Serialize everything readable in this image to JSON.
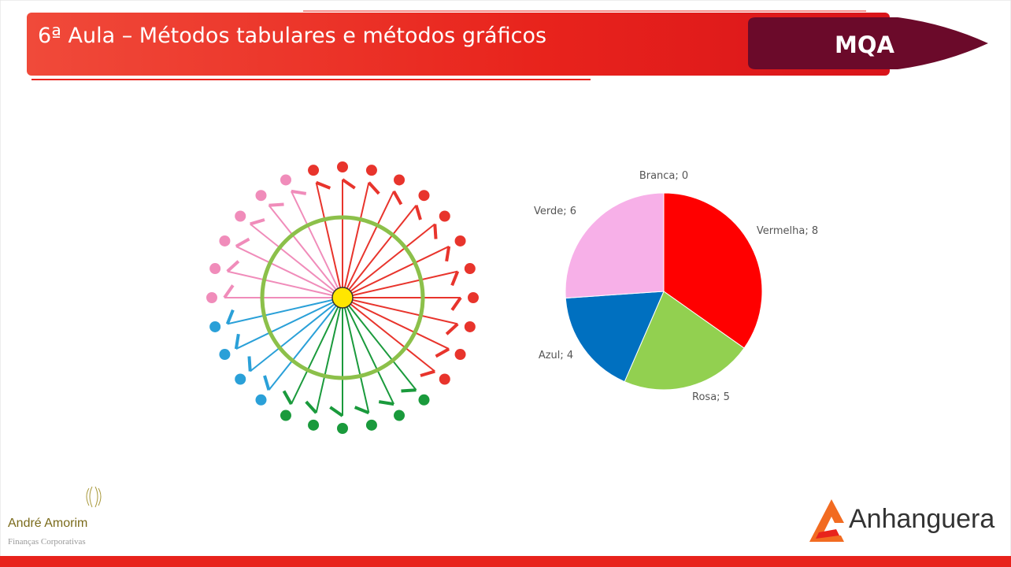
{
  "header": {
    "title": "6ª Aula – Métodos tabulares e métodos gráficos",
    "badge": "MQA"
  },
  "chart_data": {
    "type": "pie",
    "values": [
      8,
      5,
      4,
      6,
      0
    ],
    "value_labels": [
      "Vermelha; 8",
      "Rosa; 5",
      "Azul; 4",
      "Verde; 6",
      "Branca; 0"
    ],
    "colors": [
      "#ff0000",
      "#92d050",
      "#0070c0",
      "#f7b0e8",
      "#ffffff"
    ]
  },
  "footer": {
    "author": "André Amorim",
    "subtitle": "Finanças Corporativas",
    "brand": "Anhanguera"
  }
}
